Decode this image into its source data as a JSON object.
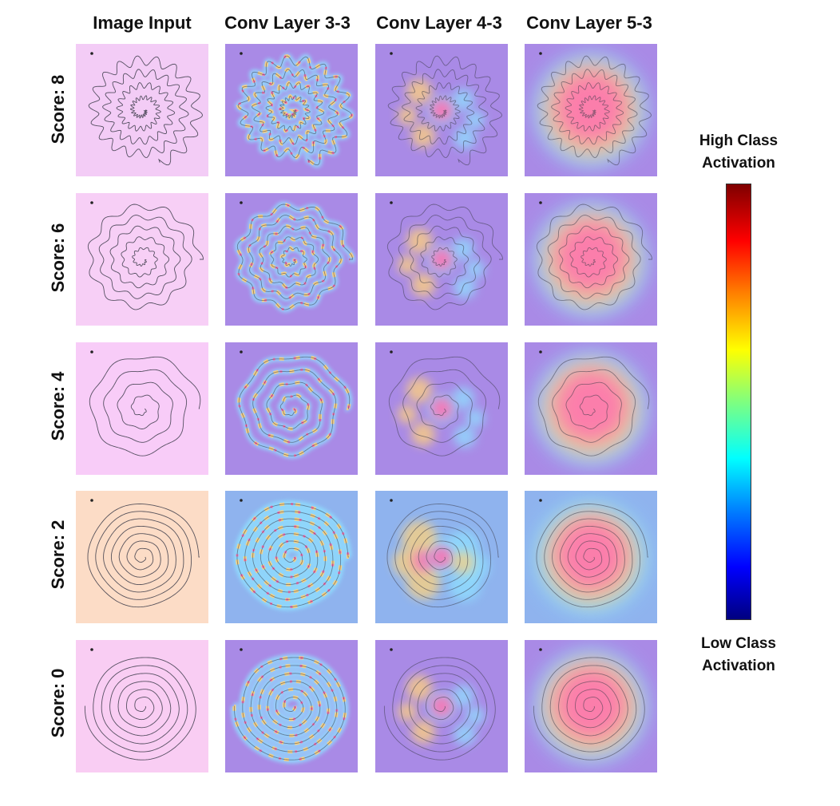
{
  "columns": [
    "Image Input",
    "Conv Layer 3-3",
    "Conv Layer 4-3",
    "Conv Layer 5-3"
  ],
  "rows": [
    "Score: 8",
    "Score: 6",
    "Score: 4",
    "Score: 2",
    "Score: 0"
  ],
  "legend": {
    "high_label": "High Class",
    "high_label_2": "Activation",
    "low_label": "Low Class",
    "low_label_2": "Activation",
    "colormap": [
      "#7f0000",
      "#ff0000",
      "#ff7f00",
      "#ffff00",
      "#7fff7f",
      "#00ffff",
      "#007fff",
      "#0000ff",
      "#00007f"
    ]
  },
  "input_backgrounds": [
    "#f3ccf6",
    "#f7cff6",
    "#f8ccf8",
    "#fcdcc6",
    "#f9cdf3"
  ],
  "heatmap_background": "#a98ae6",
  "activation_colors": {
    "hot": "#ff6fb0",
    "warm": "#ffd27a",
    "cool": "#8fe0ff"
  }
}
